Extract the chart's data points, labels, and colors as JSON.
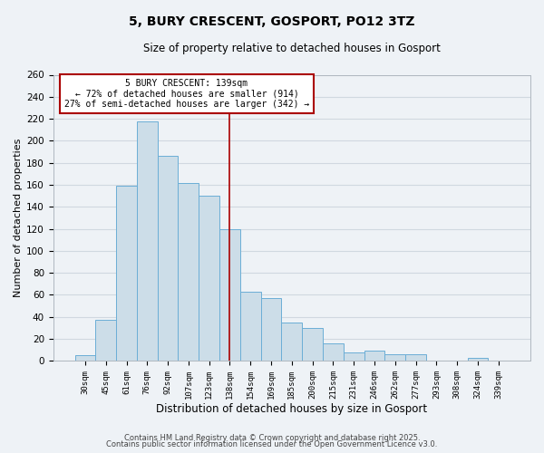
{
  "title": "5, BURY CRESCENT, GOSPORT, PO12 3TZ",
  "subtitle": "Size of property relative to detached houses in Gosport",
  "xlabel": "Distribution of detached houses by size in Gosport",
  "ylabel": "Number of detached properties",
  "bar_labels": [
    "30sqm",
    "45sqm",
    "61sqm",
    "76sqm",
    "92sqm",
    "107sqm",
    "123sqm",
    "138sqm",
    "154sqm",
    "169sqm",
    "185sqm",
    "200sqm",
    "215sqm",
    "231sqm",
    "246sqm",
    "262sqm",
    "277sqm",
    "293sqm",
    "308sqm",
    "324sqm",
    "339sqm"
  ],
  "bar_values": [
    5,
    37,
    159,
    218,
    186,
    162,
    150,
    120,
    63,
    57,
    35,
    30,
    16,
    8,
    9,
    6,
    6,
    0,
    0,
    3,
    0
  ],
  "bar_color": "#ccdde8",
  "bar_edge_color": "#6baed6",
  "marker_index": 7,
  "marker_line_color": "#aa0000",
  "annotation_title": "5 BURY CRESCENT: 139sqm",
  "annotation_line1": "← 72% of detached houses are smaller (914)",
  "annotation_line2": "27% of semi-detached houses are larger (342) →",
  "annotation_box_color": "#ffffff",
  "annotation_box_edge_color": "#aa0000",
  "ylim": [
    0,
    260
  ],
  "yticks": [
    0,
    20,
    40,
    60,
    80,
    100,
    120,
    140,
    160,
    180,
    200,
    220,
    240,
    260
  ],
  "grid_color": "#d0d8e0",
  "background_color": "#eef2f6",
  "footer1": "Contains HM Land Registry data © Crown copyright and database right 2025.",
  "footer2": "Contains public sector information licensed under the Open Government Licence v3.0."
}
